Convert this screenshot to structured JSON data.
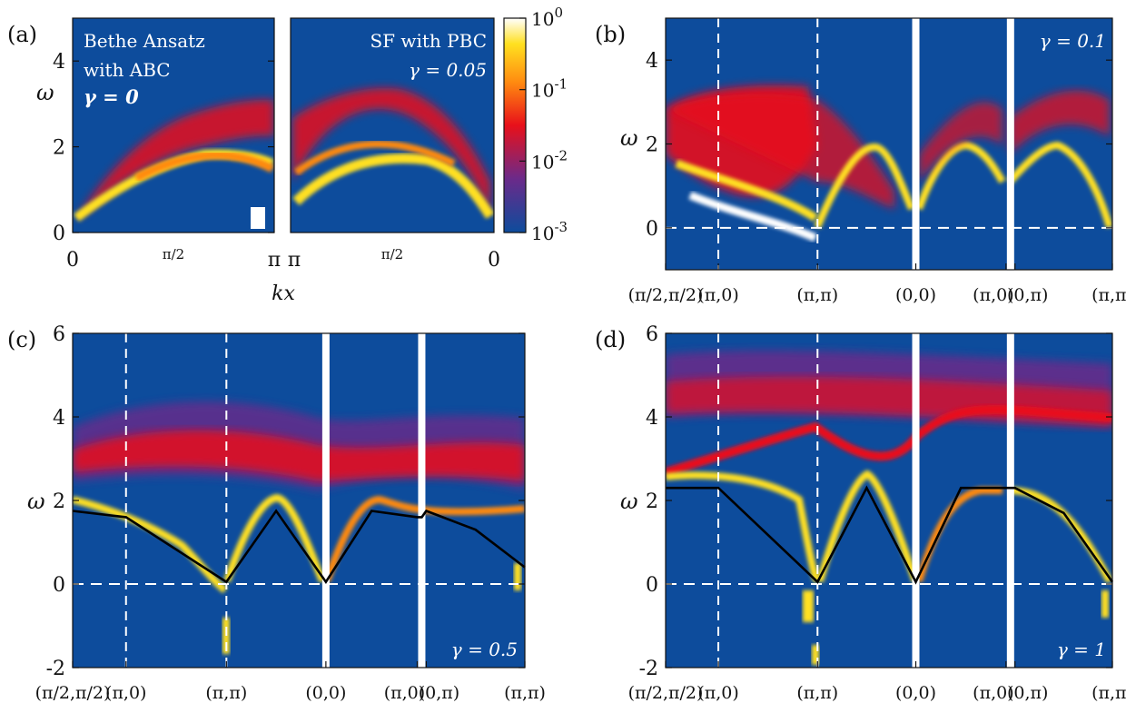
{
  "panels_text": {
    "a": {
      "tag": "(a)",
      "left_text": [
        "Bethe Ansatz",
        "with ABC"
      ],
      "left_gamma": "γ = 0",
      "right_text": "SF with PBC",
      "right_gamma": "γ = 0.05",
      "xticks_left": [
        "0",
        "π/2",
        "π"
      ],
      "xticks_right": [
        "π",
        "π/2",
        "0"
      ],
      "xlabel": "kx",
      "ylabel": "ω"
    },
    "b": {
      "tag": "(b)",
      "gamma": "γ = 0.1",
      "ylabel": "ω"
    },
    "c": {
      "tag": "(c)",
      "gamma": "γ = 0.5",
      "ylabel": "ω"
    },
    "d": {
      "tag": "(d)",
      "gamma": "γ = 1",
      "ylabel": "ω"
    },
    "path_labels": [
      "(π/2,π/2)",
      "(π,0)",
      "(π,π)",
      "(0,0)",
      "(π,0)",
      "(0,π)",
      "(π,π)"
    ]
  },
  "colors": {
    "background": "#0d4c9c",
    "colormap": [
      "#0d4c9c",
      "#6b2a8a",
      "#e8101a",
      "#ff8a10",
      "#ffe020",
      "#ffffff"
    ],
    "line": "#000000",
    "guide": "#ffffff"
  },
  "chart_data": [
    {
      "panel": "a",
      "type": "heatmap",
      "title": "",
      "xlabel": "kx",
      "ylabel": "ω",
      "ylim": [
        0,
        5
      ],
      "yticks": [
        0,
        2,
        4
      ],
      "subpanels": [
        {
          "label": "Bethe Ansatz with ABC, γ = 0",
          "xlim": [
            0,
            3.14159
          ],
          "branches": [
            {
              "kx": [
                0,
                0.785,
                1.571,
                2.356,
                3.14159
              ],
              "omega_lower": [
                0.2,
                1.1,
                1.6,
                1.4,
                0.2
              ],
              "omega_upper": [
                0.2,
                1.6,
                2.4,
                3.0,
                3.1
              ]
            }
          ]
        },
        {
          "label": "SF with PBC, γ = 0.05",
          "xlim": [
            3.14159,
            0
          ],
          "branches": [
            {
              "kx": [
                3.14159,
                2.356,
                1.571,
                0.785,
                0
              ],
              "omega_lower": [
                0.3,
                1.2,
                1.6,
                1.2,
                0.2
              ],
              "omega_upper": [
                2.9,
                3.2,
                2.8,
                1.9,
                0.2
              ]
            }
          ]
        }
      ],
      "colorbar": {
        "scale": "log",
        "range": [
          0.001,
          1
        ],
        "ticks": [
          "10^-3",
          "10^-2",
          "10^-1",
          "10^0"
        ]
      }
    },
    {
      "panel": "b",
      "type": "heatmap",
      "gamma": 0.1,
      "ylabel": "ω",
      "ylim": [
        -1,
        5
      ],
      "yticks": [
        0,
        2,
        4
      ],
      "x": [
        "(π/2,π/2)",
        "(π,0)",
        "(π,π)",
        "(0,0)",
        "(π,0)",
        "(0,π)",
        "(π,π)"
      ],
      "branch_lower": [
        1.4,
        0.6,
        -0.6,
        0.4,
        0.9,
        1.6,
        0.0
      ],
      "branch_upper": [
        3.0,
        3.1,
        3.0,
        0.6,
        3.0,
        1.6,
        3.0
      ]
    },
    {
      "panel": "c",
      "type": "heatmap",
      "gamma": 0.5,
      "ylabel": "ω",
      "ylim": [
        -2,
        6
      ],
      "yticks": [
        -2,
        0,
        2,
        4,
        6
      ],
      "x": [
        "(π/2,π/2)",
        "(π,0)",
        "(π,π)",
        "(0,0)",
        "(π,0)",
        "(0,π)",
        "(π,π)"
      ],
      "dispersion": {
        "name": "",
        "x": [
          0,
          1,
          2,
          2.5,
          3,
          3.5,
          4,
          4.5,
          5,
          5.5,
          6
        ],
        "y": [
          1.75,
          1.6,
          0.05,
          1.75,
          0.05,
          1.75,
          1.6,
          1.6,
          1.75,
          1.3,
          0.4
        ]
      }
    },
    {
      "panel": "d",
      "type": "heatmap",
      "gamma": 1,
      "ylabel": "ω",
      "ylim": [
        -2,
        6
      ],
      "yticks": [
        -2,
        0,
        2,
        4,
        6
      ],
      "x": [
        "(π/2,π/2)",
        "(π,0)",
        "(π,π)",
        "(0,0)",
        "(π,0)",
        "(0,π)",
        "(π,π)"
      ],
      "dispersion": {
        "name": "",
        "x": [
          0,
          1,
          2,
          2.5,
          3,
          3.5,
          4,
          4.5,
          5,
          5.5,
          6
        ],
        "y": [
          2.3,
          2.3,
          0.05,
          2.3,
          0.05,
          2.3,
          2.3,
          2.3,
          2.3,
          1.7,
          0.05
        ]
      }
    }
  ]
}
